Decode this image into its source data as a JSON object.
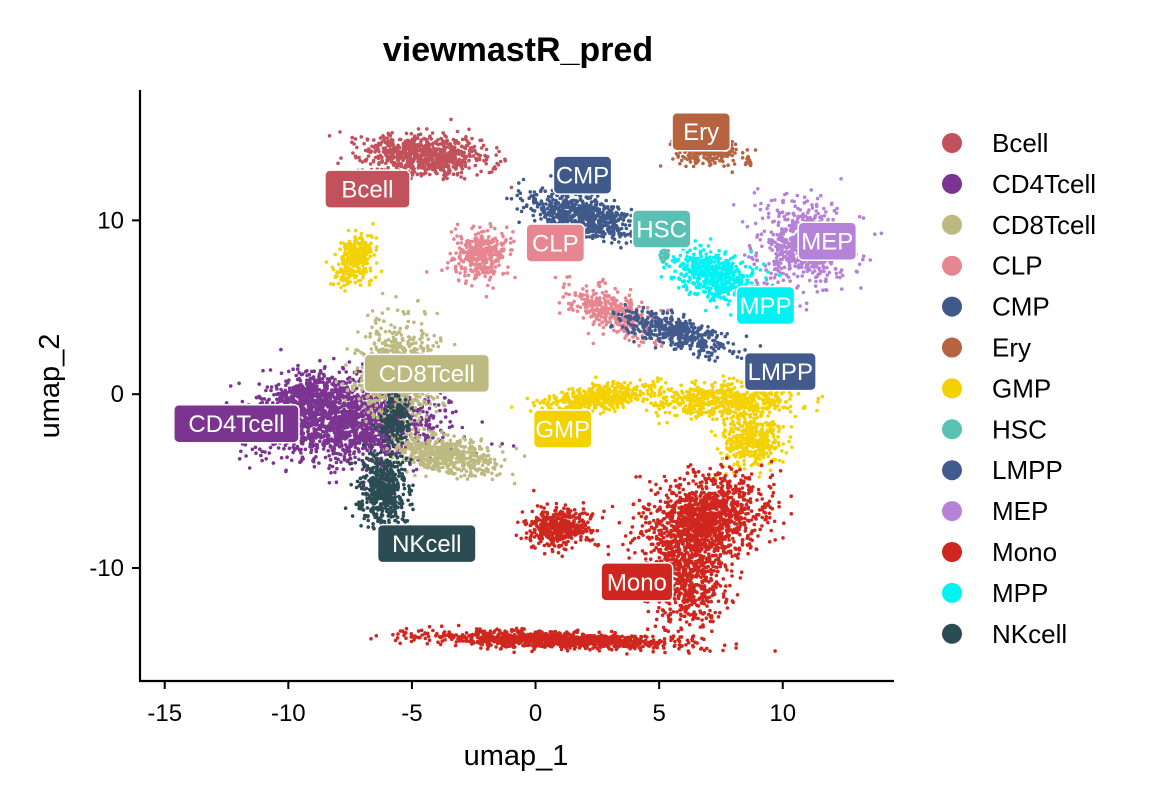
{
  "chart_data": {
    "type": "scatter",
    "title": "viewmastR_pred",
    "xlabel": "umap_1",
    "ylabel": "umap_2",
    "xlim": [
      -16,
      14.5
    ],
    "ylim": [
      -16.5,
      17.5
    ],
    "xticks": [
      -15,
      -10,
      -5,
      0,
      5,
      10
    ],
    "xtick_labels": [
      "-15",
      "-10",
      "-5",
      "0",
      "5",
      "10"
    ],
    "yticks": [
      10,
      0,
      -10
    ],
    "ytick_labels": [
      "10",
      "0",
      "-10"
    ],
    "grid": false,
    "legend_position": "right",
    "series": [
      {
        "name": "Bcell",
        "color": "#C1525B"
      },
      {
        "name": "CD4Tcell",
        "color": "#7B3590"
      },
      {
        "name": "CD8Tcell",
        "color": "#BDBA81"
      },
      {
        "name": "CLP",
        "color": "#E68690"
      },
      {
        "name": "CMP",
        "color": "#3F5A8A"
      },
      {
        "name": "Ery",
        "color": "#B5643F"
      },
      {
        "name": "GMP",
        "color": "#F4D100"
      },
      {
        "name": "HSC",
        "color": "#58C1B4"
      },
      {
        "name": "LMPP",
        "color": "#425A8C"
      },
      {
        "name": "MEP",
        "color": "#B582D8"
      },
      {
        "name": "Mono",
        "color": "#CF271F"
      },
      {
        "name": "MPP",
        "color": "#00F2F2"
      },
      {
        "name": "NKcell",
        "color": "#2B4C52"
      }
    ],
    "cluster_labels": [
      {
        "text": "Bcell",
        "x": -6.8,
        "y": 11.8,
        "color": "#C1525B"
      },
      {
        "text": "CD4Tcell",
        "x": -12.1,
        "y": -1.7,
        "color": "#7B3590"
      },
      {
        "text": "CD8Tcell",
        "x": -4.4,
        "y": 1.2,
        "color": "#BDBA81"
      },
      {
        "text": "CLP",
        "x": 0.8,
        "y": 8.7,
        "color": "#E68690"
      },
      {
        "text": "CMP",
        "x": 1.9,
        "y": 12.6,
        "color": "#3F5A8A"
      },
      {
        "text": "Ery",
        "x": 6.7,
        "y": 15.1,
        "color": "#B5643F"
      },
      {
        "text": "GMP",
        "x": 1.1,
        "y": -2.0,
        "color": "#F4D100"
      },
      {
        "text": "HSC",
        "x": 5.1,
        "y": 9.5,
        "color": "#58C1B4"
      },
      {
        "text": "LMPP",
        "x": 9.9,
        "y": 1.3,
        "color": "#425A8C"
      },
      {
        "text": "MEP",
        "x": 11.8,
        "y": 8.8,
        "color": "#B582D8"
      },
      {
        "text": "Mono",
        "x": 4.1,
        "y": -10.8,
        "color": "#CF271F"
      },
      {
        "text": "MPP",
        "x": 9.3,
        "y": 5.1,
        "color": "#00F2F2"
      },
      {
        "text": "NKcell",
        "x": -4.4,
        "y": -8.6,
        "color": "#2B4C52"
      }
    ]
  }
}
